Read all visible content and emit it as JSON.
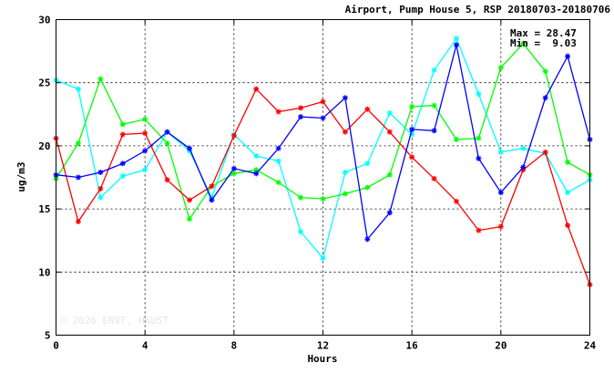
{
  "chart_data": {
    "type": "line",
    "title": "Airport, Pump House 5, RSP 20180703-20180706",
    "xlabel": "Hours",
    "ylabel": "ug/m3",
    "xlim": [
      0,
      24
    ],
    "ylim": [
      5,
      30
    ],
    "xticks": [
      0,
      4,
      8,
      12,
      16,
      20,
      24
    ],
    "yticks": [
      5,
      10,
      15,
      20,
      25,
      30
    ],
    "grid": true,
    "x": [
      0,
      1,
      2,
      3,
      4,
      5,
      6,
      7,
      8,
      9,
      10,
      11,
      12,
      13,
      14,
      15,
      16,
      17,
      18,
      19,
      20,
      21,
      22,
      23,
      24
    ],
    "series": [
      {
        "color": "#00ffff",
        "values": [
          25.2,
          24.5,
          15.9,
          17.6,
          18.1,
          21.1,
          19.6,
          15.9,
          20.9,
          19.2,
          18.8,
          13.2,
          11.1,
          17.9,
          18.6,
          22.6,
          20.9,
          26.0,
          28.5,
          24.1,
          19.5,
          19.8,
          19.4,
          16.3,
          17.3
        ]
      },
      {
        "color": "#00ff00",
        "values": [
          17.4,
          20.2,
          25.3,
          21.7,
          22.1,
          20.2,
          14.2,
          16.8,
          17.8,
          18.1,
          17.1,
          15.9,
          15.8,
          16.2,
          16.7,
          17.7,
          23.1,
          23.2,
          20.5,
          20.6,
          26.2,
          28.1,
          25.9,
          18.7,
          17.7
        ]
      },
      {
        "color": "#ff0000",
        "values": [
          20.6,
          14.0,
          16.6,
          20.9,
          21.0,
          17.3,
          15.7,
          16.8,
          20.8,
          24.5,
          22.7,
          23.0,
          23.5,
          21.1,
          22.9,
          21.1,
          19.1,
          17.4,
          15.6,
          13.3,
          13.6,
          18.1,
          19.5,
          13.7,
          9.0
        ]
      },
      {
        "color": "#0000ff",
        "values": [
          17.7,
          17.5,
          17.9,
          18.6,
          19.6,
          21.1,
          19.8,
          15.7,
          18.2,
          17.8,
          19.8,
          22.3,
          22.2,
          23.8,
          12.6,
          14.7,
          21.3,
          21.2,
          28.0,
          19.0,
          16.3,
          18.3,
          23.8,
          27.1,
          20.5
        ]
      }
    ],
    "annotations": {
      "max_label": "Max = 28.47",
      "min_label": "Min =  9.03",
      "watermark": "© 2026 ENVF, HKUST"
    }
  }
}
